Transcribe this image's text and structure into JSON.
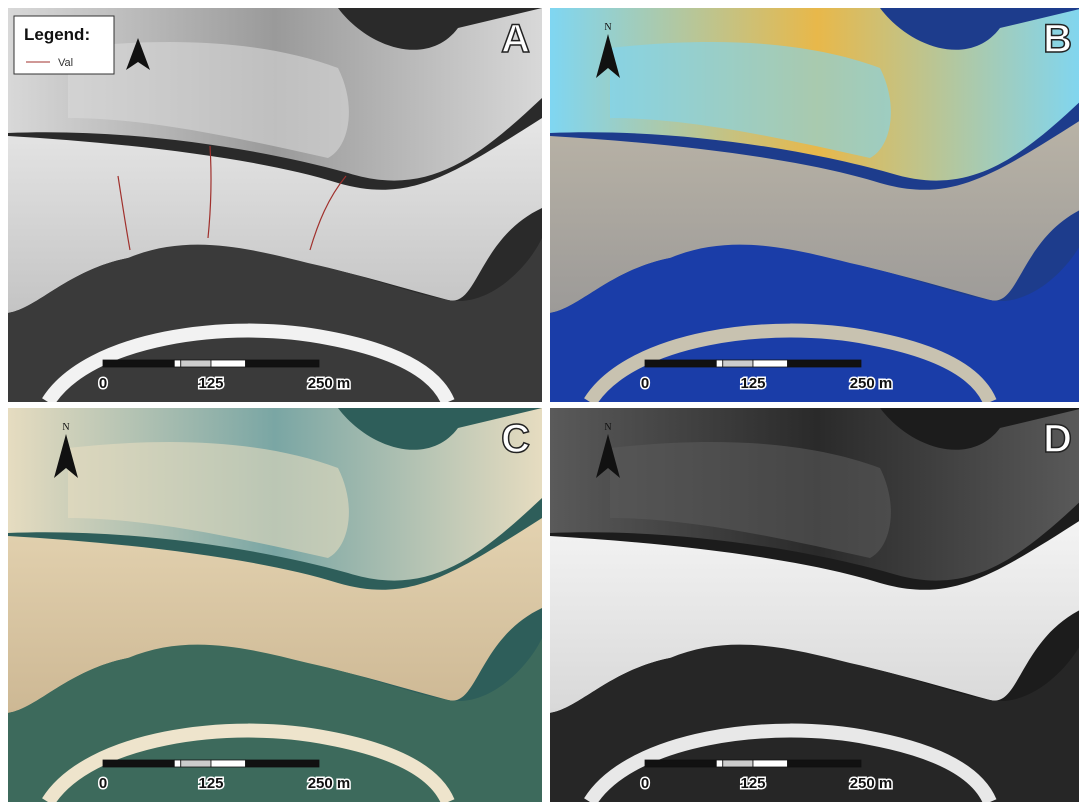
{
  "panels": [
    {
      "label": "A",
      "legend": {
        "title": "Legend:",
        "items": [
          "Val"
        ]
      },
      "scale_bar": {
        "labels": [
          "0",
          "125",
          "250 m"
        ]
      }
    },
    {
      "label": "B",
      "north": "N",
      "scale_bar": {
        "labels": [
          "0",
          "125",
          "250 m"
        ]
      }
    },
    {
      "label": "C",
      "north": "N",
      "scale_bar": {
        "labels": [
          "0",
          "125",
          "250 m"
        ]
      }
    },
    {
      "label": "D",
      "north": "N",
      "scale_bar": {
        "labels": [
          "0",
          "125",
          "250 m"
        ]
      }
    }
  ]
}
